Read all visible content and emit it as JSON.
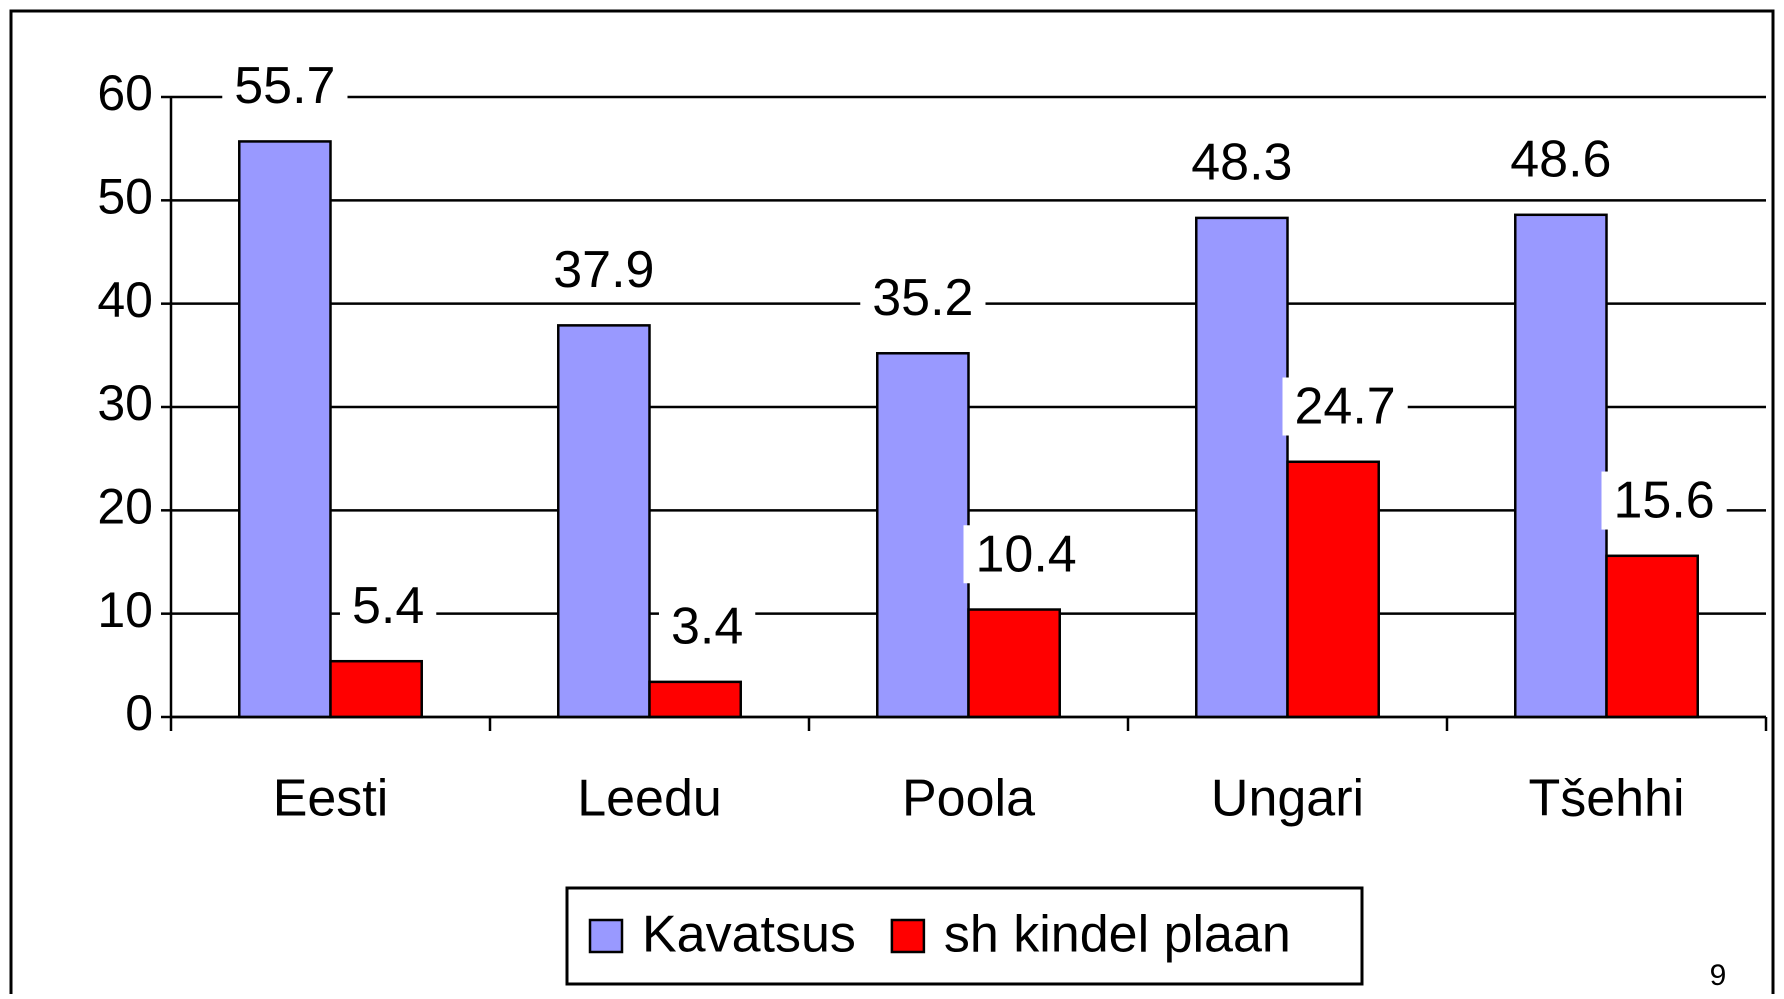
{
  "chart_data": {
    "type": "bar",
    "categories": [
      "Eesti",
      "Leedu",
      "Poola",
      "Ungari",
      "Tšehhi"
    ],
    "series": [
      {
        "name": "Kavatsus",
        "color": "#9999ff",
        "values": [
          55.7,
          37.9,
          35.2,
          48.3,
          48.6
        ]
      },
      {
        "name": "sh kindel plaan",
        "color": "#ff0000",
        "values": [
          5.4,
          3.4,
          10.4,
          24.7,
          15.6
        ]
      }
    ],
    "ylim": [
      0,
      60
    ],
    "yticks": [
      0,
      10,
      20,
      30,
      40,
      50,
      60
    ],
    "grid": true,
    "legend": "bottom"
  },
  "page_number": "9"
}
